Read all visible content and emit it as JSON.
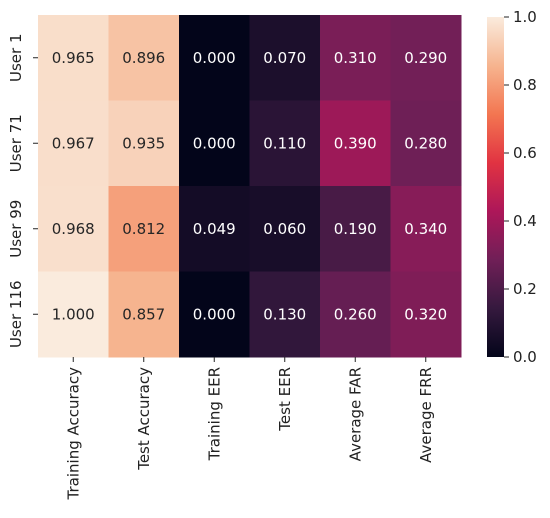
{
  "chart_data": {
    "type": "heatmap",
    "title": "",
    "xlabel": "",
    "ylabel": "",
    "columns": [
      "Training Accuracy",
      "Test Accuracy",
      "Training EER",
      "Test EER",
      "Average FAR",
      "Average FRR"
    ],
    "rows": [
      "User 1",
      "User 71",
      "User 99",
      "User 116"
    ],
    "values": [
      [
        0.965,
        0.896,
        0.0,
        0.07,
        0.31,
        0.29
      ],
      [
        0.967,
        0.935,
        0.0,
        0.11,
        0.39,
        0.28
      ],
      [
        0.968,
        0.812,
        0.049,
        0.06,
        0.19,
        0.34
      ],
      [
        1.0,
        0.857,
        0.0,
        0.13,
        0.26,
        0.32
      ]
    ],
    "cell_labels": [
      [
        "0.965",
        "0.896",
        "0.000",
        "0.070",
        "0.310",
        "0.290"
      ],
      [
        "0.967",
        "0.935",
        "0.000",
        "0.110",
        "0.390",
        "0.280"
      ],
      [
        "0.968",
        "0.812",
        "0.049",
        "0.060",
        "0.190",
        "0.340"
      ],
      [
        "1.000",
        "0.857",
        "0.000",
        "0.130",
        "0.260",
        "0.320"
      ]
    ],
    "colorbar": {
      "range": [
        0.0,
        1.0
      ],
      "ticks": [
        0.0,
        0.2,
        0.4,
        0.6,
        0.8,
        1.0
      ],
      "tick_labels": [
        "0.0",
        "0.2",
        "0.4",
        "0.6",
        "0.8",
        "1.0"
      ],
      "colormap": "rocket",
      "stops": [
        "#03051A",
        "#35193E",
        "#701F57",
        "#AD1759",
        "#E13342",
        "#F37651",
        "#F6B48F",
        "#FAEBDD"
      ]
    },
    "grid": false,
    "legend": "colorbar-right"
  }
}
